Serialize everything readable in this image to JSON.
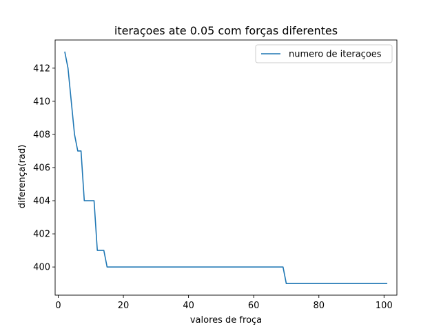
{
  "chart_data": {
    "type": "line",
    "title": "iteraçoes ate 0.05 com forças diferentes",
    "xlabel": "valores de froça",
    "ylabel": "diferença(rad)",
    "xlim": [
      -0.95,
      103.95
    ],
    "ylim": [
      398.3,
      413.7
    ],
    "xticks": [
      0,
      20,
      40,
      60,
      80,
      100
    ],
    "yticks": [
      400,
      402,
      404,
      406,
      408,
      410,
      412
    ],
    "grid": false,
    "legend_position": "upper right",
    "series": [
      {
        "name": "numero de iteraçoes",
        "color": "#1f77b4",
        "points": [
          [
            2,
            413
          ],
          [
            3,
            412
          ],
          [
            4,
            410
          ],
          [
            5,
            408
          ],
          [
            6,
            407
          ],
          [
            7,
            407
          ],
          [
            8,
            404
          ],
          [
            9,
            404
          ],
          [
            10,
            404
          ],
          [
            11,
            404
          ],
          [
            12,
            401
          ],
          [
            13,
            401
          ],
          [
            14,
            401
          ],
          [
            15,
            400
          ],
          [
            20,
            400
          ],
          [
            30,
            400
          ],
          [
            40,
            400
          ],
          [
            50,
            400
          ],
          [
            60,
            400
          ],
          [
            69,
            400
          ],
          [
            70,
            399
          ],
          [
            80,
            399
          ],
          [
            90,
            399
          ],
          [
            101,
            399
          ]
        ]
      }
    ]
  }
}
